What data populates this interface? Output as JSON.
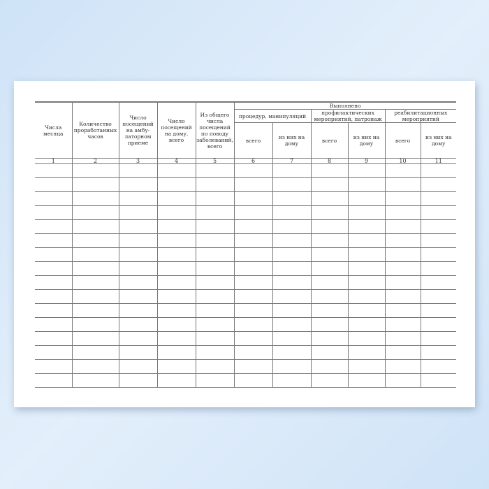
{
  "table": {
    "headers": {
      "c1": "Числа месяца",
      "c2": "Количество проработанных часов",
      "c3": "Число посещений на амбу-латорном приеме",
      "c4": "Число посещений на дому, всего",
      "c5": "Из общего числа посещений по поводу заболеваний, всего",
      "done": "Выполнено",
      "g1": "процедур, манипуляций",
      "g2": "профилактических мероприятий, патронаж",
      "g3": "реабилитационных мероприятий",
      "total": "всего",
      "home": "из них на дому"
    },
    "numbers": [
      "1",
      "2",
      "3",
      "4",
      "5",
      "6",
      "7",
      "8",
      "9",
      "10",
      "11"
    ]
  }
}
